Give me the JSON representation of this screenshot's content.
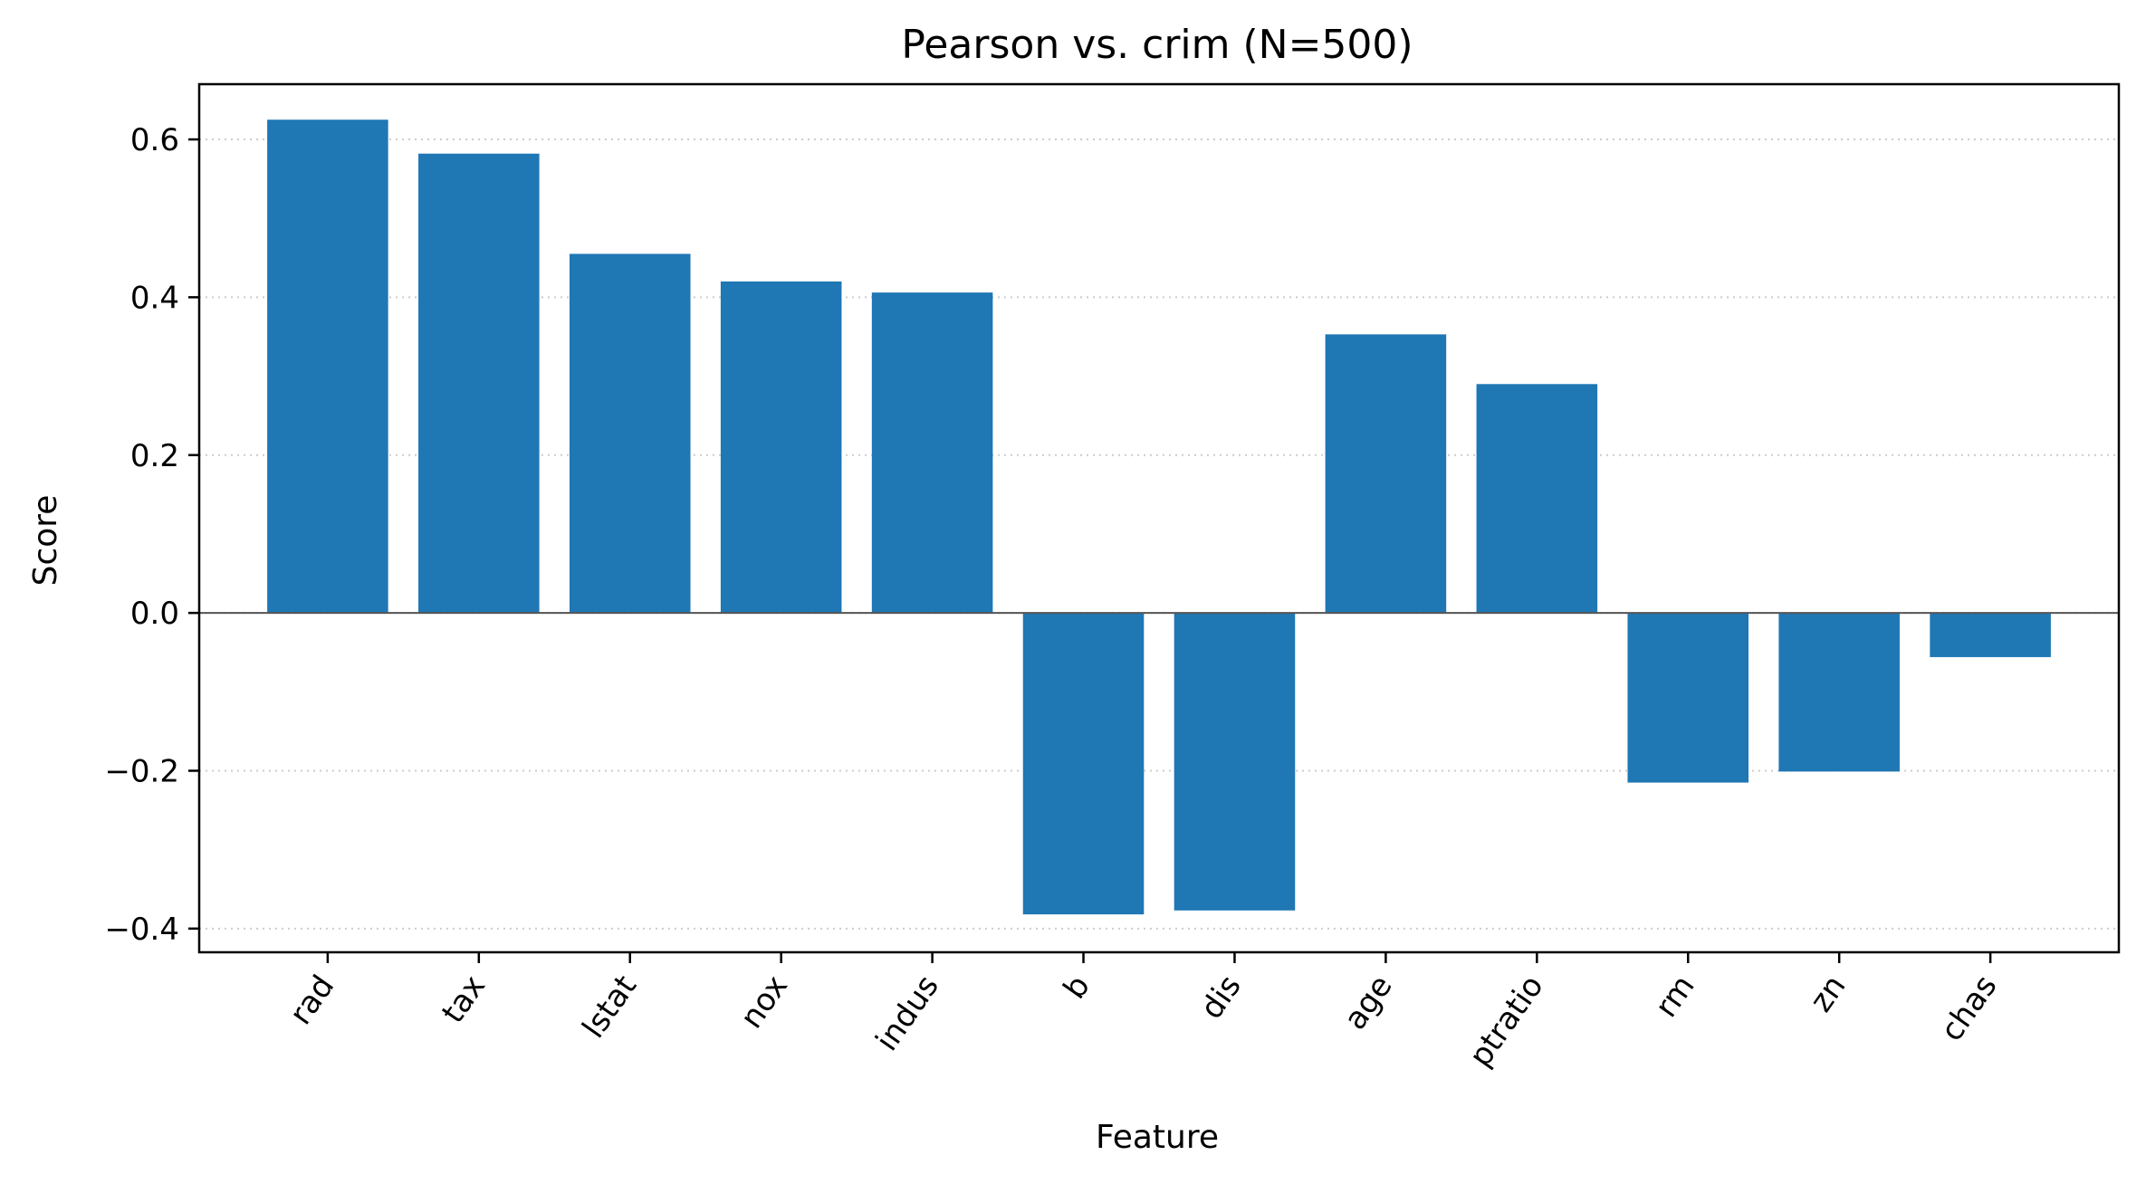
{
  "chart_data": {
    "type": "bar",
    "title": "Pearson vs. crim  (N=500)",
    "xlabel": "Feature",
    "ylabel": "Score",
    "categories": [
      "rad",
      "tax",
      "lstat",
      "nox",
      "indus",
      "b",
      "dis",
      "age",
      "ptratio",
      "rm",
      "zn",
      "chas"
    ],
    "values": [
      0.625,
      0.582,
      0.455,
      0.42,
      0.406,
      -0.382,
      -0.377,
      0.353,
      0.29,
      -0.215,
      -0.201,
      -0.056
    ],
    "ylim": [
      -0.43,
      0.67
    ],
    "yticks": [
      -0.4,
      -0.2,
      0.0,
      0.2,
      0.4,
      0.6
    ],
    "ytick_labels": [
      "−0.4",
      "−0.2",
      "0.0",
      "0.2",
      "0.4",
      "0.6"
    ],
    "grid": "horizontal dotted",
    "zero_line": true,
    "legend": "none",
    "bar_color": "#1f77b4",
    "grid_color": "#cccccc",
    "zero_line_color": "#555555"
  }
}
